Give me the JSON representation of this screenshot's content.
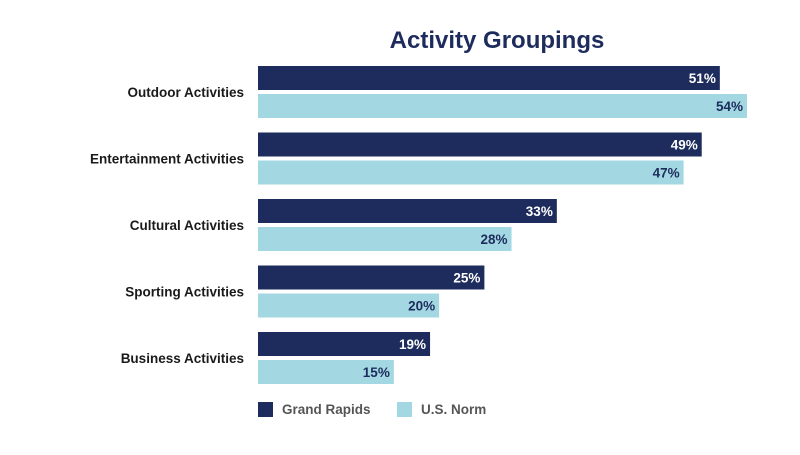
{
  "chart_data": {
    "type": "bar",
    "orientation": "horizontal",
    "title": "Activity Groupings",
    "categories": [
      "Outdoor Activities",
      "Entertainment Activities",
      "Cultural Activities",
      "Sporting Activities",
      "Business Activities"
    ],
    "series": [
      {
        "name": "Grand Rapids",
        "values": [
          51,
          49,
          33,
          25,
          19
        ],
        "labels": [
          "51%",
          "49%",
          "33%",
          "25%",
          "19%"
        ],
        "color": "#1d2c5c",
        "label_color": "#ffffff"
      },
      {
        "name": "U.S. Norm",
        "values": [
          54,
          47,
          28,
          20,
          15
        ],
        "labels": [
          "54%",
          "47%",
          "28%",
          "20%",
          "15%"
        ],
        "color": "#a3d8e3",
        "label_color": "#1d2c5c"
      }
    ],
    "xlim": [
      0,
      54
    ],
    "grid": false,
    "legend_position": "bottom-left",
    "title_color": "#1d2c5c"
  }
}
